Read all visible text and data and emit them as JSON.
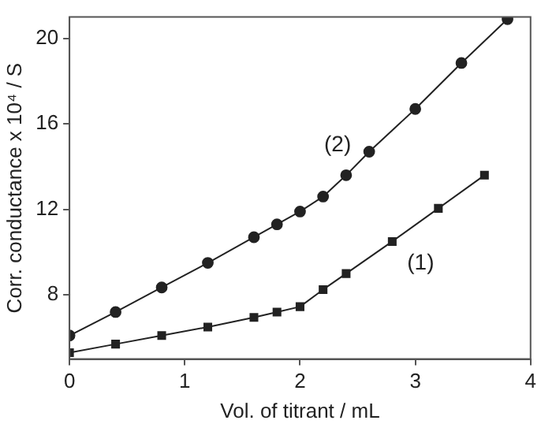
{
  "chart_data": {
    "type": "line",
    "xlabel": "Vol. of titrant / mL",
    "ylabel": "Corr. conductance x 10⁴ / S",
    "xlim": [
      0,
      4
    ],
    "xticks": [
      0,
      1,
      2,
      3,
      4
    ],
    "ylim": [
      5,
      21
    ],
    "yticks": [
      8,
      12,
      16,
      20
    ],
    "grid": false,
    "legend": false,
    "line_style": "solid",
    "series": [
      {
        "name": "(1)",
        "color": "#222222",
        "marker": "square",
        "x": [
          0,
          0.4,
          0.8,
          1.2,
          1.6,
          1.8,
          2.0,
          2.2,
          2.4,
          2.8,
          3.2,
          3.6
        ],
        "values": [
          5.3,
          5.7,
          6.1,
          6.5,
          6.95,
          7.2,
          7.45,
          8.25,
          9.0,
          10.5,
          12.05,
          13.6
        ]
      },
      {
        "name": "(2)",
        "color": "#222222",
        "marker": "circle",
        "x": [
          0,
          0.4,
          0.8,
          1.2,
          1.6,
          1.8,
          2.0,
          2.2,
          2.4,
          2.6,
          3.0,
          3.4,
          3.8
        ],
        "values": [
          6.1,
          7.2,
          8.35,
          9.5,
          10.7,
          11.3,
          11.9,
          12.6,
          13.6,
          14.7,
          16.7,
          18.85,
          20.9
        ]
      }
    ]
  }
}
